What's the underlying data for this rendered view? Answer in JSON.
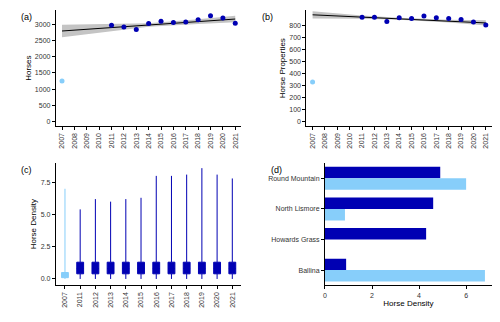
{
  "chart_data": [
    {
      "label": "(a)",
      "type": "scatter",
      "y_label": "Horses",
      "x": [
        2007,
        2011,
        2012,
        2013,
        2014,
        2015,
        2016,
        2017,
        2018,
        2019,
        2020,
        2021
      ],
      "values": [
        1250,
        2980,
        2920,
        2850,
        3030,
        3100,
        3060,
        3080,
        3150,
        3270,
        3200,
        3040
      ],
      "colors": [
        "#87cefa",
        "#0000b3",
        "#0000b3",
        "#0000b3",
        "#0000b3",
        "#0000b3",
        "#0000b3",
        "#0000b3",
        "#0000b3",
        "#0000b3",
        "#0000b3",
        "#0000b3"
      ],
      "trend": {
        "x": [
          2007,
          2011,
          2014,
          2018,
          2021
        ],
        "values": [
          2800,
          2906,
          2985,
          3091,
          3170
        ],
        "lower": [
          2610,
          2800,
          2930,
          3020,
          3070
        ],
        "upper": [
          2990,
          3010,
          3040,
          3160,
          3270
        ],
        "color": "#000000",
        "band_color": "#c4c4c4"
      },
      "xlim": [
        2006.5,
        2021.5
      ],
      "xticks": [
        2007,
        2008,
        2009,
        2010,
        2011,
        2012,
        2013,
        2014,
        2015,
        2016,
        2017,
        2018,
        2019,
        2020,
        2021
      ],
      "ylim": [
        -150,
        3450
      ],
      "yticks": [
        0,
        500,
        1000,
        1500,
        2000,
        2500,
        3000
      ],
      "grid": false
    },
    {
      "label": "(b)",
      "type": "scatter",
      "y_label": "Horse Properties",
      "x": [
        2007,
        2011,
        2012,
        2013,
        2014,
        2015,
        2016,
        2017,
        2018,
        2019,
        2020,
        2021
      ],
      "values": [
        330,
        870,
        870,
        835,
        865,
        860,
        880,
        865,
        860,
        850,
        830,
        805
      ],
      "colors": [
        "#87cefa",
        "#0000b3",
        "#0000b3",
        "#0000b3",
        "#0000b3",
        "#0000b3",
        "#0000b3",
        "#0000b3",
        "#0000b3",
        "#0000b3",
        "#0000b3",
        "#0000b3"
      ],
      "trend": {
        "x": [
          2007,
          2011,
          2014,
          2018,
          2021
        ],
        "values": [
          890,
          871,
          856,
          837,
          822
        ],
        "lower": [
          860,
          858,
          848,
          826,
          800
        ],
        "upper": [
          920,
          884,
          866,
          848,
          844
        ],
        "color": "#000000",
        "band_color": "#c4c4c4"
      },
      "xlim": [
        2006.5,
        2021.5
      ],
      "xticks": [
        2007,
        2008,
        2009,
        2010,
        2011,
        2012,
        2013,
        2014,
        2015,
        2016,
        2017,
        2018,
        2019,
        2020,
        2021
      ],
      "ylim": [
        -40,
        930
      ],
      "yticks": [
        0,
        100,
        200,
        300,
        400,
        500,
        600,
        700,
        800
      ],
      "grid": false
    },
    {
      "label": "(c)",
      "type": "box",
      "y_label": "Horse Density",
      "categories": [
        "2007",
        "2011",
        "2012",
        "2013",
        "2014",
        "2015",
        "2016",
        "2017",
        "2018",
        "2019",
        "2020",
        "2021"
      ],
      "min": [
        0,
        0,
        0,
        0,
        0,
        0,
        0,
        0,
        0,
        0,
        0,
        0
      ],
      "q1": [
        0.1,
        0.4,
        0.4,
        0.4,
        0.4,
        0.4,
        0.4,
        0.4,
        0.4,
        0.4,
        0.4,
        0.4
      ],
      "median": [
        0.3,
        0.8,
        0.8,
        0.8,
        0.8,
        0.8,
        0.8,
        0.8,
        0.8,
        0.8,
        0.8,
        0.8
      ],
      "q3": [
        0.5,
        1.3,
        1.3,
        1.3,
        1.3,
        1.3,
        1.3,
        1.3,
        1.3,
        1.3,
        1.3,
        1.3
      ],
      "max": [
        7.0,
        5.4,
        6.2,
        6.0,
        6.2,
        6.3,
        8.0,
        8.0,
        8.1,
        8.6,
        8.1,
        7.8
      ],
      "colors": [
        "#87cefa",
        "#0000b3",
        "#0000b3",
        "#0000b3",
        "#0000b3",
        "#0000b3",
        "#0000b3",
        "#0000b3",
        "#0000b3",
        "#0000b3",
        "#0000b3",
        "#0000b3"
      ],
      "ylim": [
        -0.5,
        9
      ],
      "yticks": [
        {
          "value": 0,
          "label": "0.0"
        },
        {
          "value": 2.5,
          "label": "2.5"
        },
        {
          "value": 5,
          "label": "5.0"
        },
        {
          "value": 7.5,
          "label": "7.5"
        }
      ],
      "grid": false
    },
    {
      "label": "(d)",
      "type": "bar",
      "orientation": "horizontal",
      "x_label": "Horse Density",
      "categories": [
        "Round Mountain",
        "North Lismore",
        "Howards Grass",
        "Ballina"
      ],
      "series": [
        {
          "color": "#0000b3",
          "values": [
            4.9,
            4.6,
            4.3,
            0.9
          ]
        },
        {
          "color": "#87cefa",
          "values": [
            6.0,
            0.85,
            null,
            6.8
          ]
        }
      ],
      "xlim": [
        0,
        7.1
      ],
      "xticks": [
        0,
        2,
        4,
        6
      ],
      "grid": false
    }
  ]
}
